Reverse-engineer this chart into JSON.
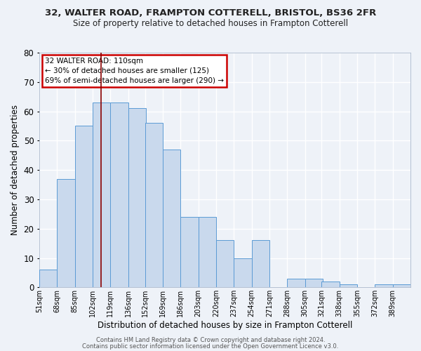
{
  "title_line1": "32, WALTER ROAD, FRAMPTON COTTERELL, BRISTOL, BS36 2FR",
  "title_line2": "Size of property relative to detached houses in Frampton Cotterell",
  "xlabel": "Distribution of detached houses by size in Frampton Cotterell",
  "ylabel": "Number of detached properties",
  "bin_labels": [
    "51sqm",
    "68sqm",
    "85sqm",
    "102sqm",
    "119sqm",
    "136sqm",
    "152sqm",
    "169sqm",
    "186sqm",
    "203sqm",
    "220sqm",
    "237sqm",
    "254sqm",
    "271sqm",
    "288sqm",
    "305sqm",
    "321sqm",
    "338sqm",
    "355sqm",
    "372sqm",
    "389sqm"
  ],
  "bar_values": [
    6,
    37,
    55,
    63,
    63,
    61,
    56,
    47,
    24,
    24,
    16,
    10,
    16,
    0,
    3,
    3,
    2,
    1,
    0,
    1,
    1
  ],
  "bar_color": "#c9d9ed",
  "bar_edge_color": "#5b9bd5",
  "background_color": "#eef2f8",
  "grid_color": "#ffffff",
  "vline_x": 110,
  "vline_color": "#8b0000",
  "bin_edges": [
    51,
    68,
    85,
    102,
    119,
    136,
    152,
    169,
    186,
    203,
    220,
    237,
    254,
    271,
    288,
    305,
    321,
    338,
    355,
    372,
    389,
    406
  ],
  "annotation_text": "32 WALTER ROAD: 110sqm\n← 30% of detached houses are smaller (125)\n69% of semi-detached houses are larger (290) →",
  "annotation_box_edgecolor": "#cc0000",
  "ylim": [
    0,
    80
  ],
  "yticks": [
    0,
    10,
    20,
    30,
    40,
    50,
    60,
    70,
    80
  ],
  "footer_line1": "Contains HM Land Registry data © Crown copyright and database right 2024.",
  "footer_line2": "Contains public sector information licensed under the Open Government Licence v3.0."
}
